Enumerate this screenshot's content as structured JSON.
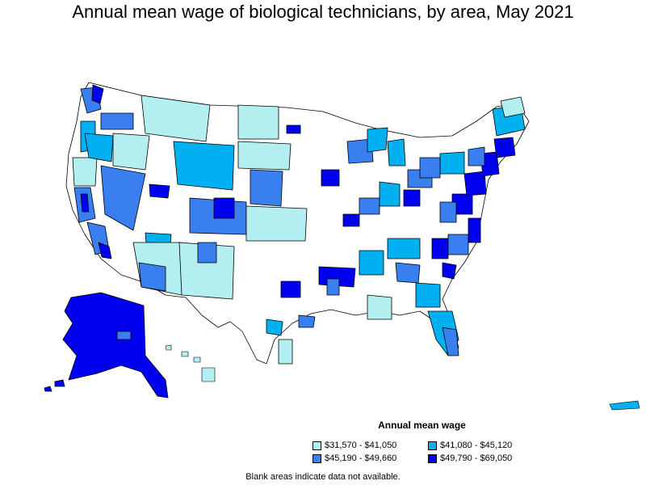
{
  "title": "Annual mean wage of biological technicians, by area, May 2021",
  "legend": {
    "title": "Annual mean wage",
    "items": [
      {
        "label": "$31,570 - $41,050",
        "color": "#b3eef0"
      },
      {
        "label": "$41,080 - $45,120",
        "color": "#00b0f0"
      },
      {
        "label": "$45,190 - $49,660",
        "color": "#3a7ff0"
      },
      {
        "label": "$49,790 - $69,050",
        "color": "#0000f0"
      }
    ]
  },
  "note": "Blank areas indicate data not available."
}
